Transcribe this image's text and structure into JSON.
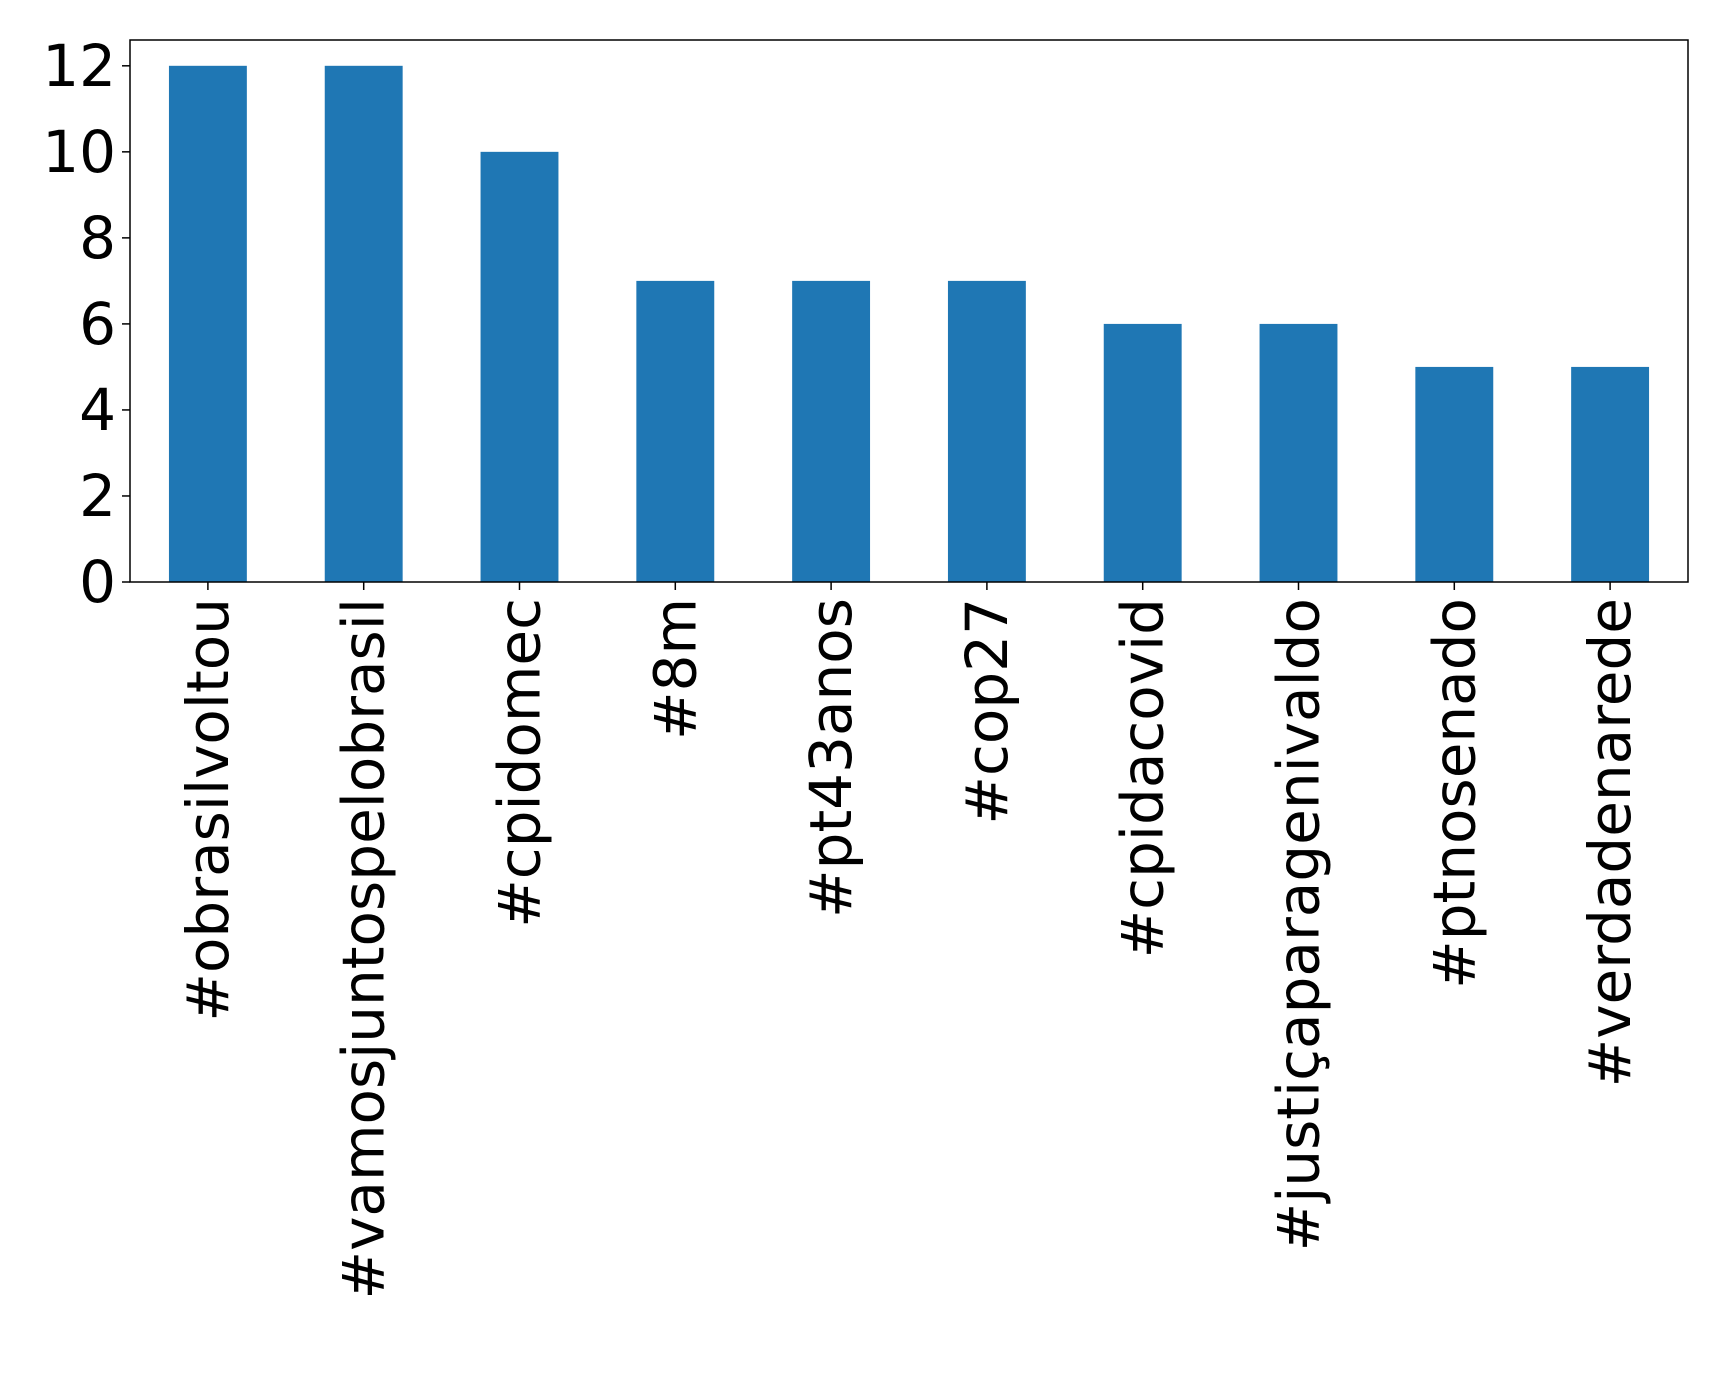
{
  "chart_data": {
    "type": "bar",
    "categories": [
      "#obrasilvoltou",
      "#vamosjuntospelobrasil",
      "#cpidomec",
      "#8m",
      "#pt43anos",
      "#cop27",
      "#cpidacovid",
      "#justiçaparagenivaldo",
      "#ptnosenado",
      "#verdadenarede"
    ],
    "values": [
      12,
      12,
      10,
      7,
      7,
      7,
      6,
      6,
      5,
      5
    ],
    "title": "",
    "xlabel": "",
    "ylabel": "",
    "ylim": [
      0,
      12.6
    ],
    "yticks": [
      0,
      2,
      4,
      6,
      8,
      10,
      12
    ],
    "ytick_labels": [
      "0",
      "2",
      "4",
      "6",
      "8",
      "10",
      "12"
    ],
    "bar_color": "#1f77b4",
    "grid": false,
    "legend": "none"
  }
}
